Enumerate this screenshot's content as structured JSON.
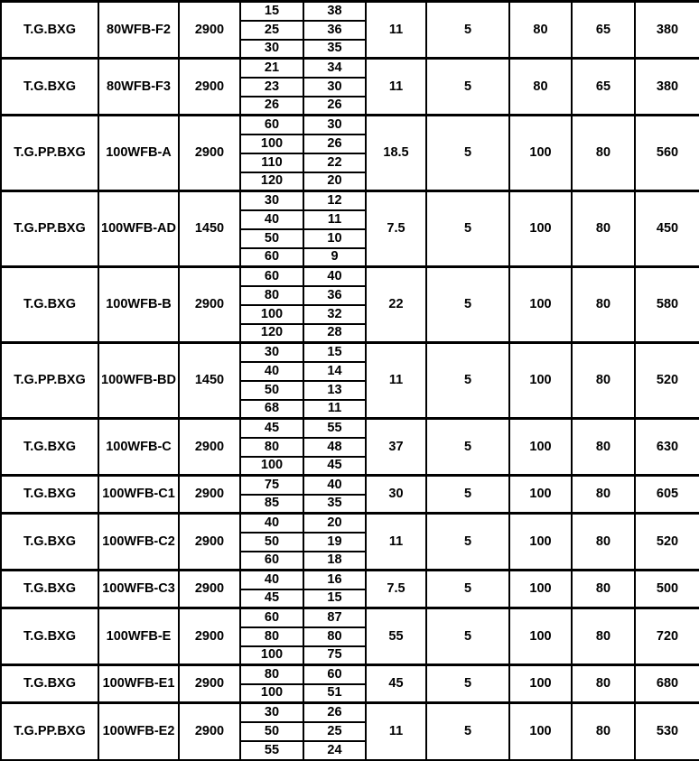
{
  "colors": {
    "background": "#ffffff",
    "border": "#000000",
    "text": "#000000"
  },
  "table": {
    "description_note": "",
    "rows": [
      {
        "series": "T.G.BXG",
        "model": "80WFB-F2",
        "speed": "2900",
        "points": [
          [
            "15",
            "38"
          ],
          [
            "25",
            "36"
          ],
          [
            "30",
            "35"
          ]
        ],
        "merged": [
          "11",
          "5",
          "80",
          "65",
          "380"
        ]
      },
      {
        "series": "T.G.BXG",
        "model": "80WFB-F3",
        "speed": "2900",
        "points": [
          [
            "21",
            "34"
          ],
          [
            "23",
            "30"
          ],
          [
            "26",
            "26"
          ]
        ],
        "merged": [
          "11",
          "5",
          "80",
          "65",
          "380"
        ]
      },
      {
        "series": "T.G.PP.BXG",
        "model": "100WFB-A",
        "speed": "2900",
        "points": [
          [
            "60",
            "30"
          ],
          [
            "100",
            "26"
          ],
          [
            "110",
            "22"
          ],
          [
            "120",
            "20"
          ]
        ],
        "merged": [
          "18.5",
          "5",
          "100",
          "80",
          "560"
        ]
      },
      {
        "series": "T.G.PP.BXG",
        "model": "100WFB-AD",
        "speed": "1450",
        "points": [
          [
            "30",
            "12"
          ],
          [
            "40",
            "11"
          ],
          [
            "50",
            "10"
          ],
          [
            "60",
            "9"
          ]
        ],
        "merged": [
          "7.5",
          "5",
          "100",
          "80",
          "450"
        ]
      },
      {
        "series": "T.G.BXG",
        "model": "100WFB-B",
        "speed": "2900",
        "points": [
          [
            "60",
            "40"
          ],
          [
            "80",
            "36"
          ],
          [
            "100",
            "32"
          ],
          [
            "120",
            "28"
          ]
        ],
        "merged": [
          "22",
          "5",
          "100",
          "80",
          "580"
        ]
      },
      {
        "series": "T.G.PP.BXG",
        "model": "100WFB-BD",
        "speed": "1450",
        "points": [
          [
            "30",
            "15"
          ],
          [
            "40",
            "14"
          ],
          [
            "50",
            "13"
          ],
          [
            "68",
            "11"
          ]
        ],
        "merged": [
          "11",
          "5",
          "100",
          "80",
          "520"
        ]
      },
      {
        "series": "T.G.BXG",
        "model": "100WFB-C",
        "speed": "2900",
        "points": [
          [
            "45",
            "55"
          ],
          [
            "80",
            "48"
          ],
          [
            "100",
            "45"
          ]
        ],
        "merged": [
          "37",
          "5",
          "100",
          "80",
          "630"
        ]
      },
      {
        "series": "T.G.BXG",
        "model": "100WFB-C1",
        "speed": "2900",
        "points": [
          [
            "75",
            "40"
          ],
          [
            "85",
            "35"
          ]
        ],
        "merged": [
          "30",
          "5",
          "100",
          "80",
          "605"
        ]
      },
      {
        "series": "T.G.BXG",
        "model": "100WFB-C2",
        "speed": "2900",
        "points": [
          [
            "40",
            "20"
          ],
          [
            "50",
            "19"
          ],
          [
            "60",
            "18"
          ]
        ],
        "merged": [
          "11",
          "5",
          "100",
          "80",
          "520"
        ]
      },
      {
        "series": "T.G.BXG",
        "model": "100WFB-C3",
        "speed": "2900",
        "points": [
          [
            "40",
            "16"
          ],
          [
            "45",
            "15"
          ]
        ],
        "merged": [
          "7.5",
          "5",
          "100",
          "80",
          "500"
        ]
      },
      {
        "series": "T.G.BXG",
        "model": "100WFB-E",
        "speed": "2900",
        "points": [
          [
            "60",
            "87"
          ],
          [
            "80",
            "80"
          ],
          [
            "100",
            "75"
          ]
        ],
        "merged": [
          "55",
          "5",
          "100",
          "80",
          "720"
        ]
      },
      {
        "series": "T.G.BXG",
        "model": "100WFB-E1",
        "speed": "2900",
        "points": [
          [
            "80",
            "60"
          ],
          [
            "100",
            "51"
          ]
        ],
        "merged": [
          "45",
          "5",
          "100",
          "80",
          "680"
        ]
      },
      {
        "series": "T.G.PP.BXG",
        "model": "100WFB-E2",
        "speed": "2900",
        "points": [
          [
            "30",
            "26"
          ],
          [
            "50",
            "25"
          ],
          [
            "55",
            "24"
          ]
        ],
        "merged": [
          "11",
          "5",
          "100",
          "80",
          "530"
        ]
      }
    ]
  }
}
